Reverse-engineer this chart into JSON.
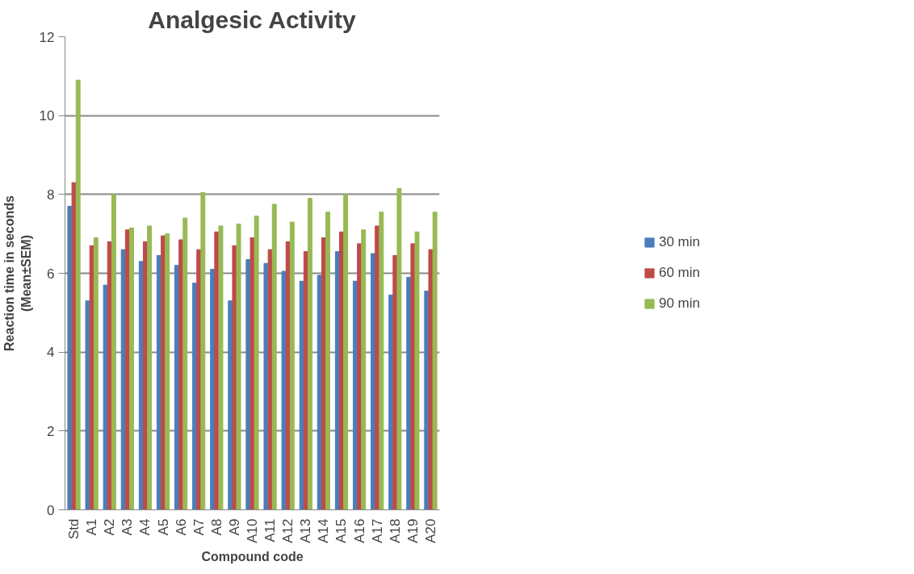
{
  "chart_data": {
    "type": "bar",
    "title": "Analgesic Activity",
    "xlabel": "Compound code",
    "ylabel": "Reaction time in seconds\n(Mean±SEM)",
    "categories": [
      "Std",
      "A1",
      "A2",
      "A3",
      "A4",
      "A5",
      "A6",
      "A7",
      "A8",
      "A9",
      "A10",
      "A11",
      "A12",
      "A13",
      "A14",
      "A15",
      "A16",
      "A17",
      "A18",
      "A19",
      "A20"
    ],
    "series": [
      {
        "name": "30 min",
        "color": "#4a7ebb",
        "values": [
          7.7,
          5.3,
          5.7,
          6.6,
          6.3,
          6.45,
          6.2,
          5.75,
          6.1,
          5.3,
          6.35,
          6.25,
          6.05,
          5.8,
          5.95,
          6.55,
          5.8,
          6.5,
          5.45,
          5.9,
          5.55
        ]
      },
      {
        "name": "60 min",
        "color": "#be4b48",
        "values": [
          8.3,
          6.7,
          6.8,
          7.1,
          6.8,
          6.95,
          6.85,
          6.6,
          7.05,
          6.7,
          6.9,
          6.6,
          6.8,
          6.55,
          6.9,
          7.05,
          6.75,
          7.2,
          6.45,
          6.75,
          6.6
        ]
      },
      {
        "name": "90 min",
        "color": "#98b954",
        "values": [
          10.9,
          6.9,
          8.0,
          7.15,
          7.2,
          7.0,
          7.4,
          8.05,
          7.2,
          7.25,
          7.45,
          7.75,
          7.3,
          7.9,
          7.55,
          8.0,
          7.1,
          7.55,
          8.15,
          7.05,
          7.55
        ]
      }
    ],
    "ylim": [
      0,
      12
    ],
    "yticks": [
      0,
      2,
      4,
      6,
      8,
      10,
      12
    ],
    "grid": "y",
    "legend": "right"
  }
}
